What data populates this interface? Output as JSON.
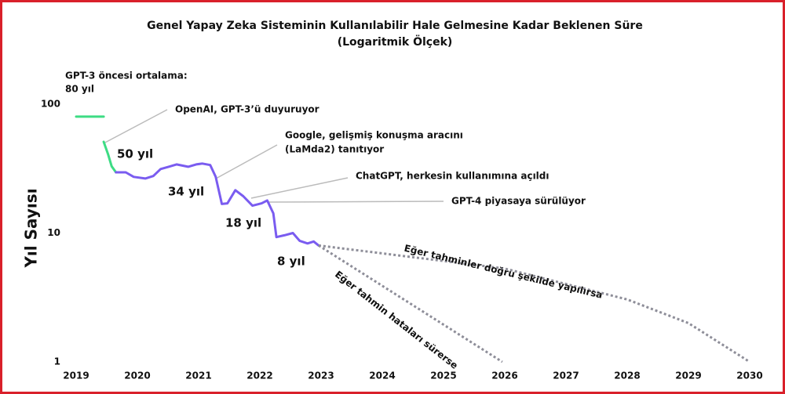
{
  "chart_data": {
    "type": "line",
    "title": "Genel Yapay Zeka Sisteminin Kullanılabilir Hale Gelmesine Kadar Beklenen Süre",
    "subtitle": "(Logaritmik Ölçek)",
    "y_label": "Yıl Sayısı",
    "log_y": true,
    "xlim": [
      2019,
      2030
    ],
    "xticks": [
      2019,
      2020,
      2021,
      2022,
      2023,
      2024,
      2025,
      2026,
      2027,
      2028,
      2029,
      2030
    ],
    "ylim": [
      1,
      100
    ],
    "yticks": [
      1,
      10,
      100
    ],
    "series": [
      {
        "color": "#3ddc84",
        "dashed": false,
        "x": [
          2019.0,
          2019.45
        ],
        "values": [
          80,
          80
        ]
      },
      {
        "color": "#3ddc84",
        "dashed": false,
        "x": [
          2019.45,
          2019.52,
          2019.58,
          2019.65
        ],
        "values": [
          51,
          41,
          33,
          29.6
        ]
      },
      {
        "color": "#7a5cf0",
        "dashed": false,
        "x": [
          2019.65,
          2019.81,
          2019.94,
          2020.13,
          2020.26,
          2020.38,
          2020.51,
          2020.64,
          2020.83,
          2020.96,
          2021.06,
          2021.19,
          2021.28,
          2021.38,
          2021.47,
          2021.6,
          2021.73,
          2021.88,
          2022.03,
          2022.12,
          2022.22,
          2022.27,
          2022.4,
          2022.54,
          2022.65,
          2022.78,
          2022.88,
          2022.96
        ],
        "values": [
          29.6,
          29.6,
          27.3,
          26.5,
          27.7,
          31.4,
          32.7,
          34.1,
          32.7,
          34.1,
          34.6,
          33.7,
          27.3,
          16.8,
          17.0,
          21.5,
          19.3,
          16.3,
          17.0,
          17.9,
          14.2,
          9.3,
          9.6,
          10.0,
          8.7,
          8.3,
          8.6,
          8.0
        ]
      },
      {
        "color": "#8e8e99",
        "dashed": true,
        "x": [
          2022.96,
          2026.0,
          2028.0,
          2029.0,
          2030.0
        ],
        "values": [
          8.0,
          5.3,
          3.05,
          2.0,
          1.0
        ]
      },
      {
        "color": "#8e8e99",
        "dashed": true,
        "x": [
          2022.96,
          2025.96
        ],
        "values": [
          8.0,
          1.0
        ]
      }
    ],
    "pre_note": [
      "GPT-3 öncesi ortalama:",
      "80 yıl"
    ],
    "annotations": [
      [
        "OpenAI, GPT-3’ü duyuruyor"
      ],
      [
        "Google, gelişmiş konuşma aracını",
        "(LaMda2) tanıtıyor"
      ],
      [
        "ChatGPT, herkesin kullanımına açıldı"
      ],
      [
        "GPT-4 piyasaya sürülüyor"
      ]
    ],
    "year_labels": [
      "50 yıl",
      "34 yıl",
      "18 yıl",
      "8 yıl"
    ],
    "projection_labels": [
      "Eğer tahminler doğru şekilde yapılırsa",
      "Eğer tahmin hataları sürerse"
    ]
  }
}
